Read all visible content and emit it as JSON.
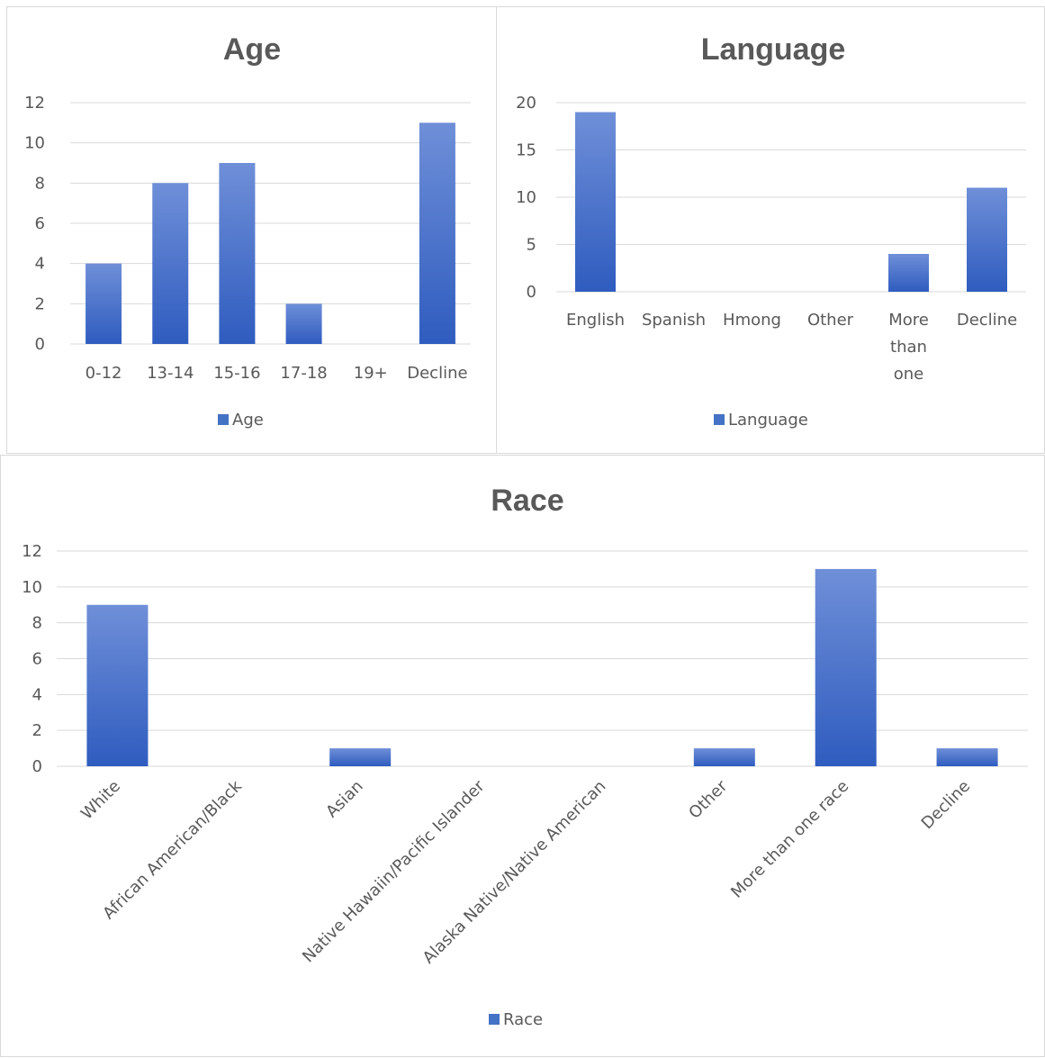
{
  "colors": {
    "bar_top": "#6f8fd8",
    "bar_bottom": "#2f5cbf",
    "grid": "#d9d9d9",
    "text": "#595959",
    "legend_swatch": "#4472c4"
  },
  "chart_data": [
    {
      "id": "age",
      "type": "bar",
      "title": "Age",
      "categories": [
        "0-12",
        "13-14",
        "15-16",
        "17-18",
        "19+",
        "Decline"
      ],
      "series": [
        {
          "name": "Age",
          "values": [
            4,
            8,
            9,
            2,
            0,
            11
          ]
        }
      ],
      "ylim": [
        0,
        12
      ],
      "yticks": [
        0,
        2,
        4,
        6,
        8,
        10,
        12
      ],
      "grid": true,
      "legend": "bottom"
    },
    {
      "id": "language",
      "type": "bar",
      "title": "Language",
      "categories": [
        "English",
        "Spanish",
        "Hmong",
        "Other",
        "More than one",
        "Decline"
      ],
      "series": [
        {
          "name": "Language",
          "values": [
            19,
            0,
            0,
            0,
            4,
            11
          ]
        }
      ],
      "ylim": [
        0,
        20
      ],
      "yticks": [
        0,
        5,
        10,
        15,
        20
      ],
      "grid": true,
      "legend": "bottom"
    },
    {
      "id": "race",
      "type": "bar",
      "title": "Race",
      "categories": [
        "White",
        "African American/Black",
        "Asian",
        "Native Hawaiin/Pacific Islander",
        "Alaska Native/Native American",
        "Other",
        "More than one race",
        "Decline"
      ],
      "series": [
        {
          "name": "Race",
          "values": [
            9,
            0,
            1,
            0,
            0,
            1,
            11,
            1
          ]
        }
      ],
      "ylim": [
        0,
        12
      ],
      "yticks": [
        0,
        2,
        4,
        6,
        8,
        10,
        12
      ],
      "grid": true,
      "legend": "bottom"
    }
  ]
}
